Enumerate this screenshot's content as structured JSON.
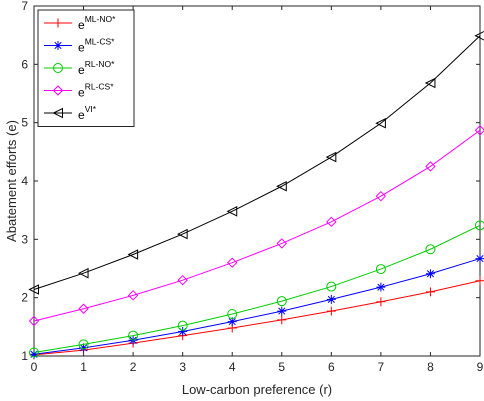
{
  "chart_data": {
    "type": "line",
    "xlabel": "Low-carbon preference (r)",
    "ylabel": "Abatement efforts (e)",
    "xlim": [
      0,
      9
    ],
    "ylim": [
      1,
      7
    ],
    "x": [
      0,
      1,
      2,
      3,
      4,
      5,
      6,
      7,
      8,
      9
    ],
    "xticks": [
      "0",
      "1",
      "2",
      "3",
      "4",
      "5",
      "6",
      "7",
      "8",
      "9"
    ],
    "yticks": [
      "1",
      "2",
      "3",
      "4",
      "5",
      "6",
      "7"
    ],
    "grid": false,
    "legend_position": "top-left",
    "series": [
      {
        "base": "e",
        "sup": "ML-NO*",
        "color": "#ff0000",
        "marker": "plus",
        "values": [
          1.02,
          1.1,
          1.22,
          1.35,
          1.48,
          1.62,
          1.77,
          1.93,
          2.1,
          2.29
        ]
      },
      {
        "base": "e",
        "sup": "ML-CS*",
        "color": "#0000ff",
        "marker": "star",
        "values": [
          1.03,
          1.14,
          1.27,
          1.42,
          1.59,
          1.77,
          1.97,
          2.18,
          2.41,
          2.67
        ]
      },
      {
        "base": "e",
        "sup": "RL-NO*",
        "color": "#00cc00",
        "marker": "circle",
        "values": [
          1.06,
          1.2,
          1.35,
          1.52,
          1.72,
          1.94,
          2.19,
          2.49,
          2.83,
          3.24
        ]
      },
      {
        "base": "e",
        "sup": "RL-CS*",
        "color": "#ff00ff",
        "marker": "diamond",
        "values": [
          1.6,
          1.81,
          2.04,
          2.3,
          2.6,
          2.93,
          3.3,
          3.74,
          4.25,
          4.87
        ]
      },
      {
        "base": "e",
        "sup": "VI*",
        "color": "#000000",
        "marker": "triangle-left",
        "values": [
          2.14,
          2.42,
          2.74,
          3.09,
          3.48,
          3.91,
          4.41,
          4.99,
          5.68,
          6.49
        ]
      }
    ]
  }
}
